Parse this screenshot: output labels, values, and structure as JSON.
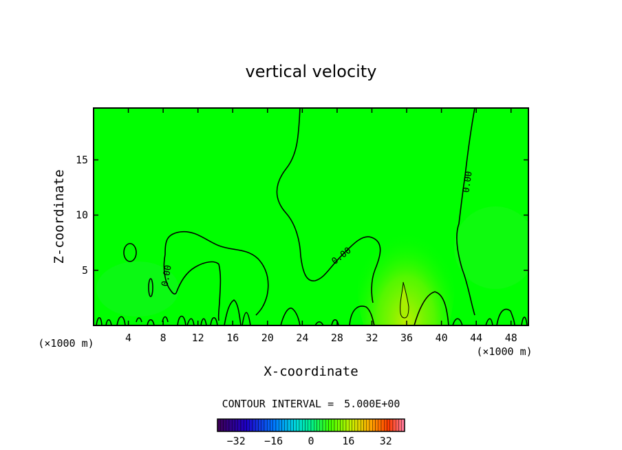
{
  "chart_data": {
    "type": "heatmap",
    "title": "vertical velocity",
    "xlabel": "X-coordinate",
    "ylabel": "Z-coordinate",
    "x_unit_left": "(×1000 m)",
    "x_unit_right": "(×1000 m)",
    "xlim": [
      0,
      50
    ],
    "ylim": [
      0,
      19.7
    ],
    "x_ticks": [
      4,
      8,
      12,
      16,
      20,
      24,
      28,
      32,
      36,
      40,
      44,
      48
    ],
    "y_ticks": [
      5,
      10,
      15
    ],
    "field_color": "#00ff00",
    "warm_region": {
      "x": [
        31.5,
        40
      ],
      "y": [
        0,
        9
      ],
      "peak_x": 35.5,
      "peak_y": 2.5,
      "color": "#b8f000"
    },
    "contour_level_labels": [
      {
        "text": "0.00",
        "x": 8.4,
        "y": 4.5,
        "angle": -80
      },
      {
        "text": "0.00",
        "x": 28.5,
        "y": 6.3,
        "angle": -38
      },
      {
        "text": "0.00",
        "x": 43.0,
        "y": 13.0,
        "angle": -82
      }
    ],
    "contour_interval_label": "CONTOUR INTERVAL =",
    "contour_interval": "5.000E+00",
    "colorbar": {
      "min": -40,
      "max": 40,
      "ticks": [
        "−32",
        "−16",
        "0",
        "16",
        "32"
      ],
      "tick_values": [
        -32,
        -16,
        0,
        16,
        32
      ],
      "segments": 64
    },
    "grid": false
  }
}
